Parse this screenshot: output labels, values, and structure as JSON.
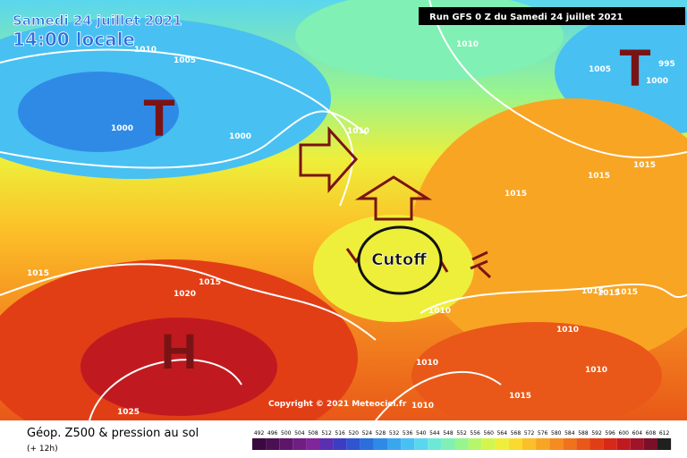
{
  "header": {
    "date": "Samedi 24 juillet 2021",
    "time": "14:00 locale",
    "run": "Run GFS 0 Z du Samedi 24 juillet 2021"
  },
  "map": {
    "symbols": [
      "T",
      "T",
      "H"
    ],
    "annotation": "Cutoff",
    "copyright": "Copyright © 2021 Meteociel.fr",
    "pressure_labels": [
      1010,
      1005,
      1000,
      1000,
      1010,
      1010,
      1005,
      995,
      1000,
      1015,
      1015,
      1015,
      1015,
      1015,
      1020,
      1010,
      1015,
      1015,
      1015,
      1010,
      1010,
      1010,
      1015,
      1010,
      1025
    ]
  },
  "footer": {
    "title": "Géop. Z500 & pression au sol",
    "subtitle": "(+ 12h)",
    "scale": [
      492,
      496,
      500,
      504,
      508,
      512,
      516,
      520,
      524,
      528,
      532,
      536,
      540,
      544,
      548,
      552,
      556,
      560,
      564,
      568,
      572,
      576,
      580,
      584,
      588,
      592,
      596,
      600,
      604,
      608,
      612
    ],
    "colors": [
      "#3a0a3f",
      "#4b1052",
      "#5e166a",
      "#701e82",
      "#80269a",
      "#5a2fb0",
      "#3d3dc4",
      "#2f55d0",
      "#2a6fdc",
      "#2f8ae6",
      "#3aa6ee",
      "#48c0f2",
      "#5ad6ee",
      "#6ee8d6",
      "#80f0b4",
      "#98f48e",
      "#b6f66a",
      "#d4f54c",
      "#eeef3a",
      "#fada2e",
      "#fcbf28",
      "#f8a524",
      "#f48c20",
      "#ef721c",
      "#e95818",
      "#e23e16",
      "#d82818",
      "#c01a20",
      "#a0142a",
      "#7a0f28",
      "#202020"
    ]
  }
}
